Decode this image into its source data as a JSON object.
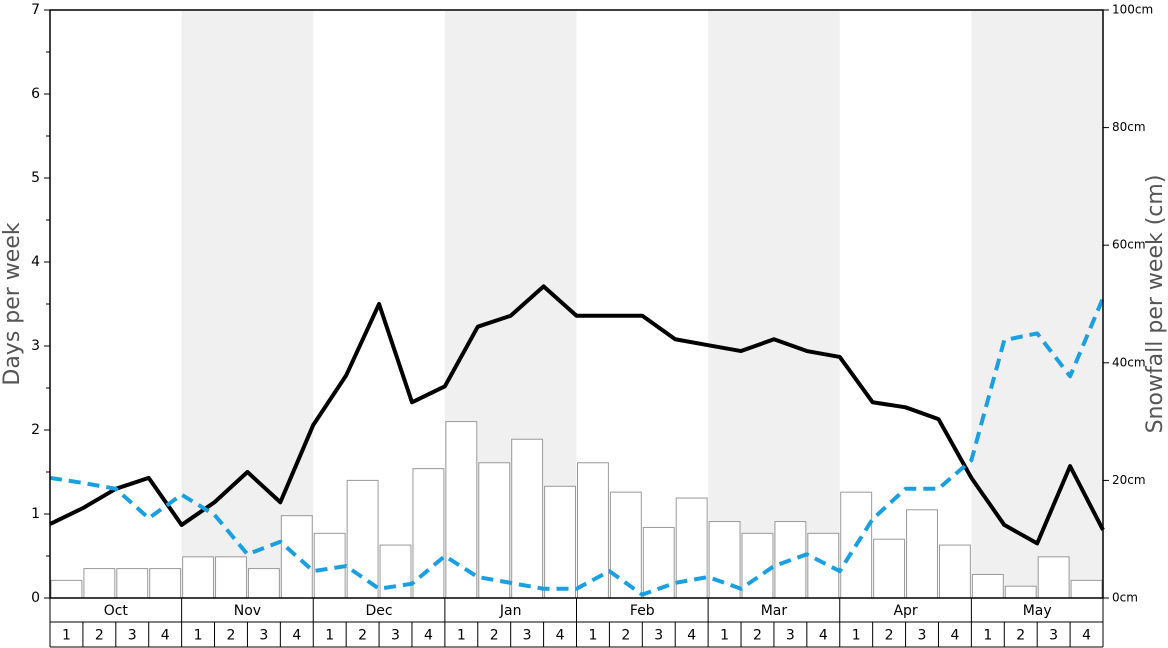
{
  "chart_data": {
    "type": "bar",
    "ylabel": "Days per week",
    "y2label": "Snowfall per week (cm)",
    "months": [
      "Oct",
      "Nov",
      "Dec",
      "Jan",
      "Feb",
      "Mar",
      "Apr",
      "May"
    ],
    "categories": [
      "1",
      "2",
      "3",
      "4",
      "1",
      "2",
      "3",
      "4",
      "1",
      "2",
      "3",
      "4",
      "1",
      "2",
      "3",
      "4",
      "1",
      "2",
      "3",
      "4",
      "1",
      "2",
      "3",
      "4",
      "1",
      "2",
      "3",
      "4",
      "1",
      "2",
      "3",
      "4"
    ],
    "x": [
      0,
      1,
      2,
      3,
      4,
      5,
      6,
      7,
      8,
      9,
      10,
      11,
      12,
      13,
      14,
      15,
      16,
      17,
      18,
      19,
      20,
      21,
      22,
      23,
      24,
      25,
      26,
      27,
      28,
      29,
      30,
      31,
      32
    ],
    "xlim": [
      0,
      32
    ],
    "ylim": [
      0,
      7
    ],
    "yticks": [
      0,
      1,
      2,
      3,
      4,
      5,
      6,
      7
    ],
    "yminorticks": [
      0.5,
      1.5,
      2.5,
      3.5,
      4.5,
      5.5,
      6.5
    ],
    "y2lim": [
      0,
      100
    ],
    "y2ticks": [
      {
        "value": 0,
        "label": "0cm"
      },
      {
        "value": 20,
        "label": "20cm"
      },
      {
        "value": 40,
        "label": "40cm"
      },
      {
        "value": 60,
        "label": "60cm"
      },
      {
        "value": 80,
        "label": "80cm"
      },
      {
        "value": 100,
        "label": "100cm"
      }
    ],
    "series": [
      {
        "type": "bar",
        "axis": "y2",
        "color": "#ffffff",
        "edgecolor": "#999999",
        "values": [
          3,
          5,
          5,
          5,
          7,
          7,
          5,
          14,
          11,
          20,
          9,
          22,
          30,
          23,
          27,
          19,
          23,
          18,
          12,
          17,
          13,
          11,
          13,
          11,
          18,
          10,
          15,
          9,
          4,
          2,
          7,
          3
        ]
      },
      {
        "type": "line",
        "color": "#000000",
        "dashed": false,
        "values": [
          0.88,
          1.07,
          1.3,
          1.43,
          0.87,
          1.14,
          1.5,
          1.14,
          2.06,
          2.65,
          3.5,
          2.33,
          2.52,
          3.23,
          3.36,
          3.71,
          3.36,
          3.36,
          3.36,
          3.08,
          3.01,
          2.94,
          3.08,
          2.94,
          2.87,
          2.33,
          2.27,
          2.13,
          1.43,
          0.87,
          0.65,
          1.57,
          0.81
        ]
      },
      {
        "type": "line",
        "color": "#1aa0e0",
        "dashed": true,
        "values": [
          1.43,
          1.37,
          1.3,
          0.95,
          1.23,
          0.99,
          0.52,
          0.67,
          0.32,
          0.38,
          0.11,
          0.17,
          0.5,
          0.25,
          0.18,
          0.11,
          0.11,
          0.32,
          0.04,
          0.18,
          0.25,
          0.11,
          0.38,
          0.52,
          0.32,
          0.94,
          1.3,
          1.3,
          1.64,
          3.07,
          3.15,
          2.64,
          3.57
        ]
      }
    ]
  }
}
